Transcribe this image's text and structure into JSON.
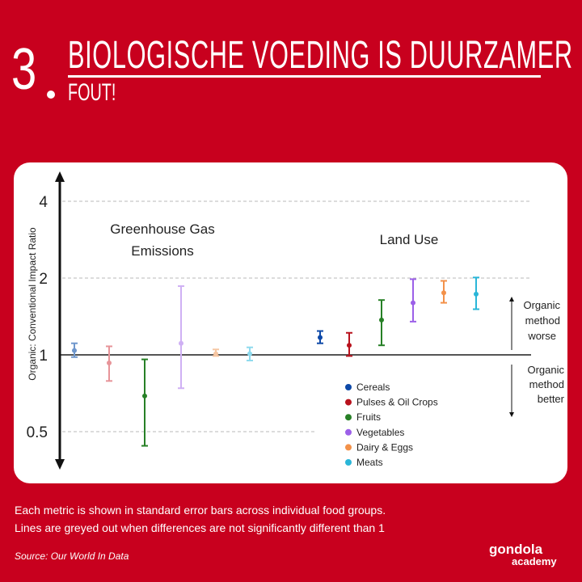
{
  "header": {
    "number": "3",
    "title": "BIOLOGISCHE  VOEDING IS DUURZAMER",
    "subtitle": "FOUT!"
  },
  "chart_data": {
    "type": "errorbar",
    "ylabel": "Organic: Conventional Impact Ratio",
    "yscale": "log2",
    "ylim": [
      0.42,
      4.6
    ],
    "yticks": [
      0.5,
      1,
      2,
      4
    ],
    "reference_line": 1,
    "grid": "dashed at ticks",
    "panels": [
      {
        "label_lines": [
          "Greenhouse Gas",
          "Emissions"
        ],
        "points": [
          {
            "group": "Cereals",
            "value": 1.04,
            "low": 0.98,
            "high": 1.11,
            "significant": false
          },
          {
            "group": "Pulses & Oil Crops",
            "value": 0.93,
            "low": 0.79,
            "high": 1.08,
            "significant": false
          },
          {
            "group": "Fruits",
            "value": 0.69,
            "low": 0.44,
            "high": 0.96,
            "significant": true
          },
          {
            "group": "Vegetables",
            "value": 1.11,
            "low": 0.74,
            "high": 1.86,
            "significant": false
          },
          {
            "group": "Dairy & Eggs",
            "value": 1.01,
            "low": 0.99,
            "high": 1.05,
            "significant": false
          },
          {
            "group": "Meats",
            "value": 1.01,
            "low": 0.95,
            "high": 1.07,
            "significant": false
          }
        ]
      },
      {
        "label_lines": [
          "Land Use"
        ],
        "points": [
          {
            "group": "Cereals",
            "value": 1.17,
            "low": 1.11,
            "high": 1.24,
            "significant": true
          },
          {
            "group": "Pulses & Oil Crops",
            "value": 1.09,
            "low": 0.99,
            "high": 1.22,
            "significant": true
          },
          {
            "group": "Fruits",
            "value": 1.37,
            "low": 1.09,
            "high": 1.64,
            "significant": true
          },
          {
            "group": "Vegetables",
            "value": 1.6,
            "low": 1.35,
            "high": 1.98,
            "significant": true
          },
          {
            "group": "Dairy & Eggs",
            "value": 1.75,
            "low": 1.6,
            "high": 1.95,
            "significant": true
          },
          {
            "group": "Meats",
            "value": 1.73,
            "low": 1.51,
            "high": 2.01,
            "significant": true
          }
        ]
      }
    ],
    "legend": [
      {
        "name": "Cereals",
        "color": "#0e49a8"
      },
      {
        "name": "Pulses & Oil Crops",
        "color": "#b8121d"
      },
      {
        "name": "Fruits",
        "color": "#278026"
      },
      {
        "name": "Vegetables",
        "color": "#9c60e8"
      },
      {
        "name": "Dairy & Eggs",
        "color": "#f39149"
      },
      {
        "name": "Meats",
        "color": "#2ab6d8"
      }
    ],
    "faded_colors": {
      "Cereals": "#6f97cc",
      "Pulses & Oil Crops": "#e79499",
      "Vegetables": "#cfb0f4",
      "Dairy & Eggs": "#f6c6a2",
      "Meats": "#8edaee"
    },
    "annotations": {
      "worse": [
        "Organic",
        "method",
        "worse"
      ],
      "better": [
        "Organic",
        "method",
        "better"
      ]
    }
  },
  "caption": {
    "line1": "Each metric is shown in standard error bars across individual food groups.",
    "line2": "Lines are greyed out when differences are not significantly different than 1"
  },
  "source": "Source: Our World In Data",
  "logo": {
    "name": "gondola",
    "sub": "academy"
  }
}
